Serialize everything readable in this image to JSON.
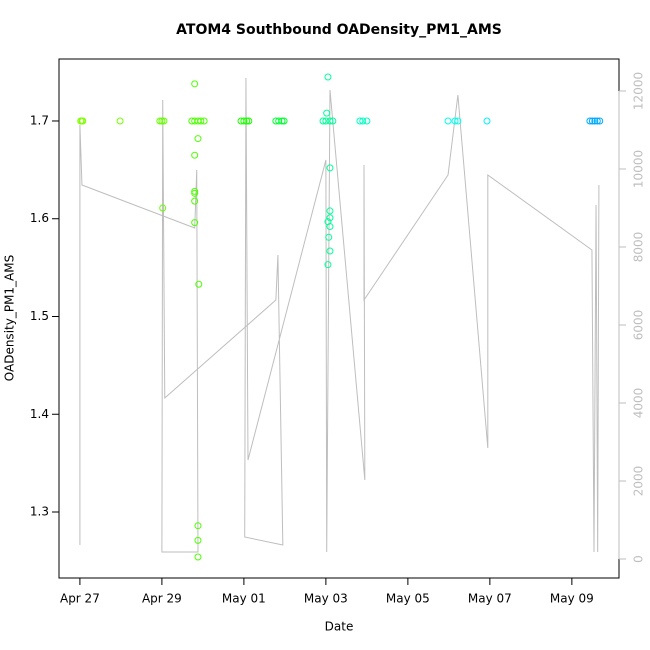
{
  "chart_data": {
    "type": "scatter",
    "title": "ATOM4 Southbound OADensity_PM1_AMS",
    "x_label": "Date",
    "y_label": "OADensity_PM1_AMS",
    "xlim": [
      -0.51,
      13.15
    ],
    "xticks": [
      {
        "value": 0,
        "label": "Apr 27"
      },
      {
        "value": 2,
        "label": "Apr 29"
      },
      {
        "value": 4,
        "label": "May 01"
      },
      {
        "value": 6,
        "label": "May 03"
      },
      {
        "value": 8,
        "label": "May 05"
      },
      {
        "value": 10,
        "label": "May 07"
      },
      {
        "value": 12,
        "label": "May 09"
      }
    ],
    "ylim": [
      1.2325,
      1.7634
    ],
    "yticks": [
      1.3,
      1.4,
      1.5,
      1.6,
      1.7
    ],
    "y2lim": [
      -487,
      12820
    ],
    "y2ticks": [
      0,
      2000,
      4000,
      6000,
      8000,
      10000,
      12000
    ],
    "series": [
      {
        "type": "scatter",
        "x": [
          0.02,
          0.05,
          0.07,
          0.98,
          1.95,
          2.0,
          2.05,
          2.02,
          2.73,
          2.8,
          2.88,
          2.95,
          3.03,
          2.8,
          2.8,
          2.88,
          2.8,
          2.8,
          2.8,
          2.8,
          2.9,
          2.88,
          2.88,
          2.88,
          3.93,
          4.0,
          4.07,
          4.12,
          4.78,
          4.85,
          4.93,
          4.98,
          5.93,
          6.0,
          6.1,
          6.17,
          6.05,
          6.02,
          6.1,
          6.1,
          6.1,
          6.05,
          6.1,
          6.07,
          6.1,
          6.05,
          6.83,
          6.9,
          7.0,
          8.98,
          9.15,
          9.22,
          9.93,
          12.44,
          12.5,
          12.56,
          12.62,
          12.68
        ],
        "values": [
          1.7,
          1.7,
          1.7,
          1.7,
          1.7,
          1.7,
          1.7,
          1.611,
          1.7,
          1.7,
          1.7,
          1.7,
          1.7,
          1.738,
          1.665,
          1.682,
          1.628,
          1.626,
          1.618,
          1.596,
          1.533,
          1.286,
          1.271,
          1.254,
          1.7,
          1.7,
          1.7,
          1.7,
          1.7,
          1.7,
          1.7,
          1.7,
          1.7,
          1.7,
          1.7,
          1.7,
          1.745,
          1.708,
          1.652,
          1.608,
          1.601,
          1.597,
          1.592,
          1.581,
          1.567,
          1.553,
          1.7,
          1.7,
          1.7,
          1.7,
          1.7,
          1.7,
          1.7,
          1.7,
          1.7,
          1.7,
          1.7,
          1.7
        ],
        "colors": [
          "#80ff00",
          "#80ff00",
          "#80ff00",
          "#73ff00",
          "#66ff00",
          "#66ff00",
          "#66ff00",
          "#66ff00",
          "#4dff00",
          "#4dff00",
          "#4dff00",
          "#4dff00",
          "#4dff00",
          "#4dff00",
          "#4dff00",
          "#4dff00",
          "#4dff00",
          "#4dff00",
          "#4dff00",
          "#4dff00",
          "#4dff00",
          "#4dff00",
          "#4dff00",
          "#4dff00",
          "#1aff00",
          "#1aff00",
          "#1aff00",
          "#1aff00",
          "#00ff33",
          "#00ff33",
          "#00ff33",
          "#00ff33",
          "#00ff99",
          "#00ff99",
          "#00ff99",
          "#00ff99",
          "#00ff99",
          "#00ff99",
          "#00ff99",
          "#00ff99",
          "#00ff99",
          "#00ff99",
          "#00ff99",
          "#00ff99",
          "#00ff99",
          "#00ff99",
          "#00ffbf",
          "#00ffbf",
          "#00ffbf",
          "#00ffee",
          "#00ffee",
          "#00ffee",
          "#00f2ff",
          "#00aaff",
          "#00aaff",
          "#00aaff",
          "#00aaff",
          "#00aaff"
        ]
      },
      {
        "type": "line",
        "axis": "y2",
        "color": "#bebebe",
        "x": [
          0,
          0,
          0.05,
          2.8,
          2.85,
          2.88,
          2.0,
          2.02,
          2.07,
          4.78,
          4.83,
          4.95,
          4.02,
          4.05,
          4.1,
          6.0,
          6.02,
          6.1,
          6.95,
          6.93,
          6.93,
          8.98,
          9.22,
          9.95,
          9.95,
          12.49,
          12.54,
          12.59,
          12.63,
          12.66
        ],
        "values": [
          359,
          11128,
          9590,
          8487,
          9974,
          179,
          179,
          11769,
          4128,
          6641,
          7795,
          359,
          564,
          12333,
          2538,
          10231,
          179,
          12026,
          2026,
          10103,
          6641,
          9846,
          11897,
          2846,
          9846,
          7923,
          179,
          9077,
          179,
          9590
        ]
      }
    ]
  }
}
